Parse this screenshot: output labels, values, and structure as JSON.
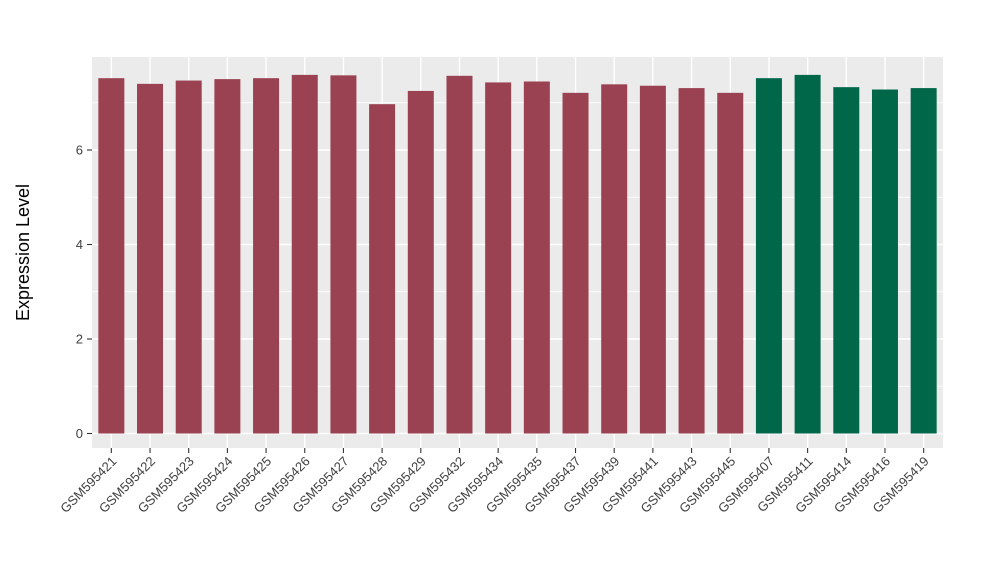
{
  "chart_data": {
    "type": "bar",
    "title": "",
    "xlabel": "",
    "ylabel": "Expression Level",
    "legend_position": "none",
    "grid": "horizontal major+minor, vertical major per category",
    "panel_background": "#EBEBEB",
    "gridline_color": "#FFFFFF",
    "axis_text_color": "#404040",
    "axis_title_color": "#000000",
    "tick_mark_color": "#333333",
    "y_tick_labels": [
      "0",
      "2",
      "4",
      "6"
    ],
    "y_tick_values": [
      0,
      2,
      4,
      6
    ],
    "y_minor_tick_values": [
      1,
      3,
      5,
      7
    ],
    "ylim": [
      0,
      7.96
    ],
    "group_colors": {
      "group1": "#9A4251",
      "group2": "#006749"
    },
    "bars": [
      {
        "label": "GSM595421",
        "value": 7.52,
        "group": "group1"
      },
      {
        "label": "GSM595422",
        "value": 7.4,
        "group": "group1"
      },
      {
        "label": "GSM595423",
        "value": 7.47,
        "group": "group1"
      },
      {
        "label": "GSM595424",
        "value": 7.5,
        "group": "group1"
      },
      {
        "label": "GSM595425",
        "value": 7.52,
        "group": "group1"
      },
      {
        "label": "GSM595426",
        "value": 7.59,
        "group": "group1"
      },
      {
        "label": "GSM595427",
        "value": 7.58,
        "group": "group1"
      },
      {
        "label": "GSM595428",
        "value": 6.97,
        "group": "group1"
      },
      {
        "label": "GSM595429",
        "value": 7.25,
        "group": "group1"
      },
      {
        "label": "GSM595432",
        "value": 7.57,
        "group": "group1"
      },
      {
        "label": "GSM595434",
        "value": 7.43,
        "group": "group1"
      },
      {
        "label": "GSM595435",
        "value": 7.45,
        "group": "group1"
      },
      {
        "label": "GSM595437",
        "value": 7.21,
        "group": "group1"
      },
      {
        "label": "GSM595439",
        "value": 7.39,
        "group": "group1"
      },
      {
        "label": "GSM595441",
        "value": 7.36,
        "group": "group1"
      },
      {
        "label": "GSM595443",
        "value": 7.31,
        "group": "group1"
      },
      {
        "label": "GSM595445",
        "value": 7.21,
        "group": "group1"
      },
      {
        "label": "GSM595407",
        "value": 7.52,
        "group": "group2"
      },
      {
        "label": "GSM595411",
        "value": 7.59,
        "group": "group2"
      },
      {
        "label": "GSM595414",
        "value": 7.33,
        "group": "group2"
      },
      {
        "label": "GSM595416",
        "value": 7.28,
        "group": "group2"
      },
      {
        "label": "GSM595419",
        "value": 7.31,
        "group": "group2"
      }
    ]
  }
}
